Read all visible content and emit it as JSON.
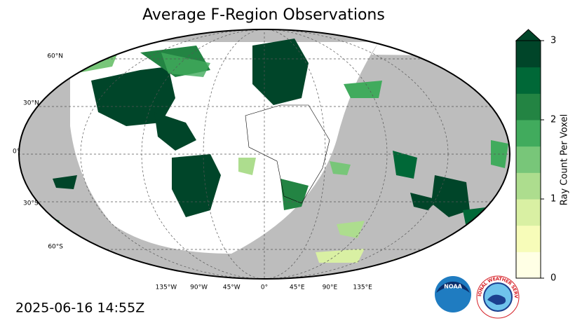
{
  "title": "Average F-Region Observations",
  "map": {
    "lat_labels": [
      "60°N",
      "30°N",
      "0°",
      "30°S",
      "60°S"
    ],
    "lon_labels": [
      "135°W",
      "90°W",
      "45°W",
      "0°",
      "45°E",
      "90°E",
      "135°E"
    ]
  },
  "colorbar": {
    "label": "Ray Count Per Voxel",
    "lim": [
      0,
      3
    ],
    "ticks": [
      0,
      1,
      2,
      3
    ],
    "colors": [
      "#ffffe5",
      "#f7fcb9",
      "#d9f0a3",
      "#addd8e",
      "#78c679",
      "#41ab5d",
      "#238443",
      "#006837",
      "#004529"
    ]
  },
  "timestamp": "2025-06-16 14:55Z",
  "logos": {
    "noaa": "NOAA",
    "nws": "NATIONAL WEATHER SERVICE"
  }
}
